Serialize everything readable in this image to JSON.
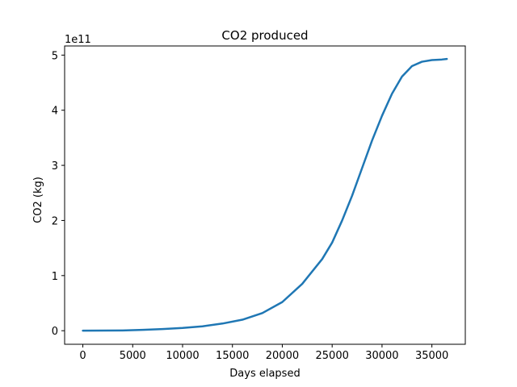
{
  "chart_data": {
    "type": "line",
    "title": "CO2 produced",
    "xlabel": "Days elapsed",
    "ylabel": "CO2 (kg)",
    "y_offset_label": "1e11",
    "y_scale_factor": 100000000000,
    "xlim": [
      -1826,
      38350
    ],
    "ylim": [
      -24600000000,
      516600000000
    ],
    "x_ticks": [
      0,
      5000,
      10000,
      15000,
      20000,
      25000,
      30000,
      35000
    ],
    "x_tick_labels": [
      "0",
      "5000",
      "10000",
      "15000",
      "20000",
      "25000",
      "30000",
      "35000"
    ],
    "y_ticks": [
      0,
      100000000000,
      200000000000,
      300000000000,
      400000000000,
      500000000000
    ],
    "y_tick_labels": [
      "0",
      "1",
      "2",
      "3",
      "4",
      "5"
    ],
    "grid": false,
    "color": "#1f77b4",
    "series": [
      {
        "x": [
          0,
          2000,
          4000,
          5000,
          6000,
          8000,
          10000,
          12000,
          14000,
          16000,
          18000,
          20000,
          22000,
          24000,
          25000,
          26000,
          27000,
          28000,
          29000,
          30000,
          31000,
          32000,
          33000,
          34000,
          35000,
          36000,
          36500
        ],
        "y": [
          0,
          200000000,
          500000000,
          1000000000,
          1600000000,
          3000000000,
          5000000000,
          8000000000,
          13000000000,
          20000000000,
          32000000000,
          52000000000,
          85000000000,
          130000000000,
          160000000000,
          200000000000,
          245000000000,
          295000000000,
          345000000000,
          390000000000,
          430000000000,
          461000000000,
          480000000000,
          488000000000,
          491000000000,
          492000000000,
          493000000000
        ]
      }
    ]
  }
}
